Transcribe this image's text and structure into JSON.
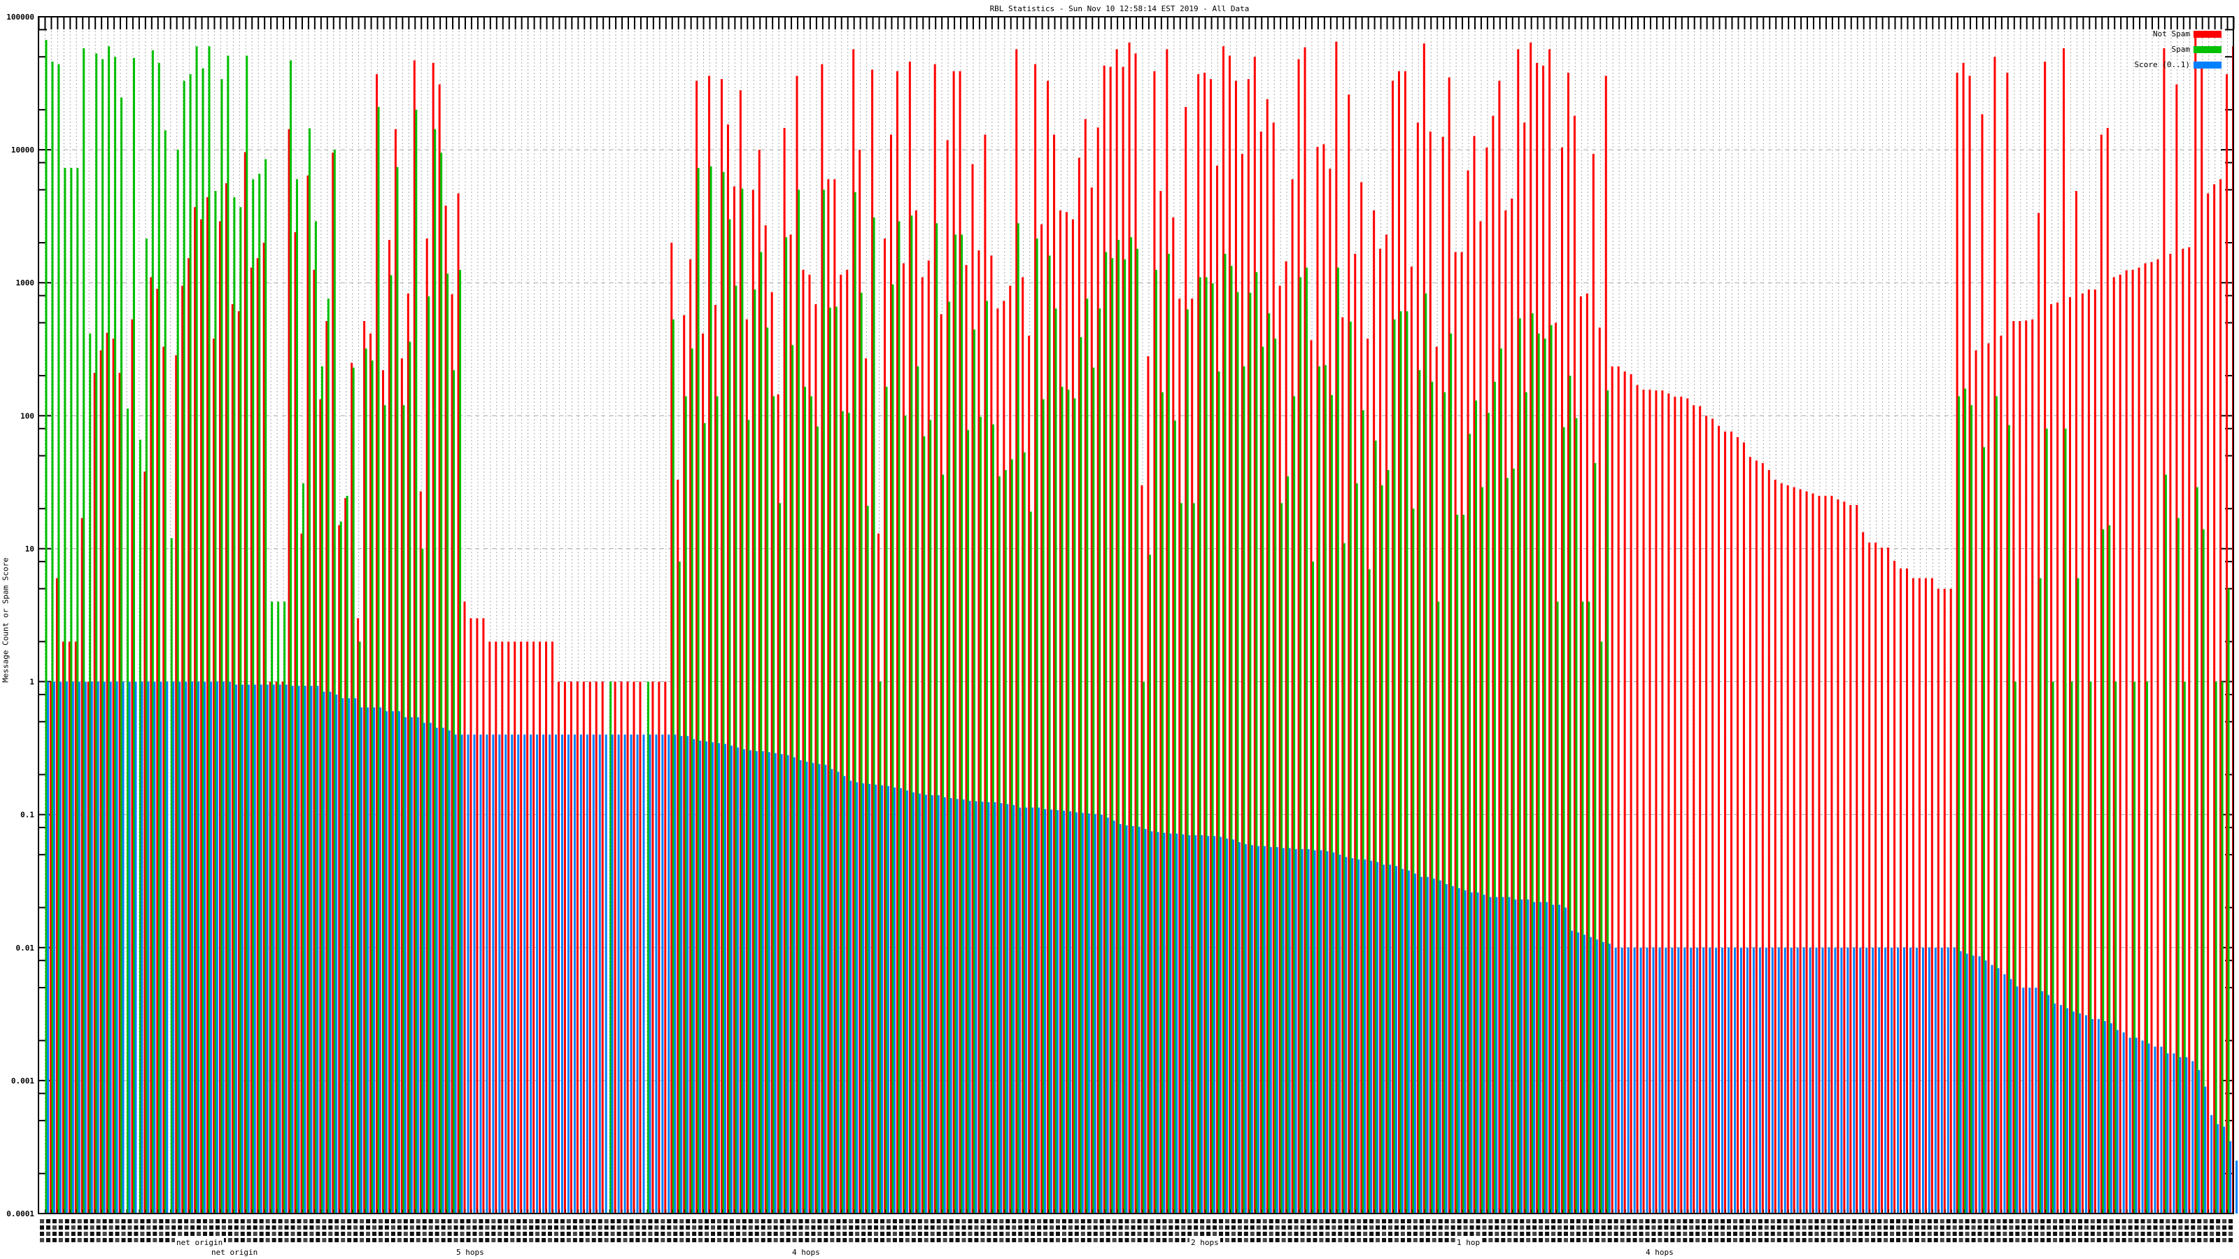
{
  "chart_data": {
    "type": "bar",
    "title": "RBL Statistics - Sun Nov 10 12:58:14 EST 2019 - All Data",
    "ylabel": "Message Count or Spam Score",
    "xlabel": "",
    "yscale": "log",
    "ylim": [
      0.0001,
      100000
    ],
    "yticks": [
      "100000",
      "10000",
      "1000",
      "100",
      "10",
      "1",
      "0.1",
      "0.01",
      "0.001",
      "0.0001"
    ],
    "legend_position": "top-right",
    "grid": true,
    "x_label_fragments": [
      "net origin",
      "net origin",
      "5 hops",
      "4 hops",
      "2 hops",
      "1 hop",
      "4 hops"
    ],
    "series": [
      {
        "name": "Not Spam",
        "color": "#ff0000",
        "values": [
          0,
          1,
          6,
          2,
          2,
          2,
          17,
          1,
          210,
          310,
          420,
          380,
          210,
          0,
          530,
          0,
          38,
          1100,
          900,
          330,
          0,
          285,
          950,
          1530,
          3700,
          3000,
          4400,
          380,
          2900,
          5600,
          690,
          610,
          9600,
          1300,
          1530,
          2000,
          1,
          1,
          1,
          14300,
          2400,
          13,
          6400,
          1250,
          133,
          515,
          9500,
          15,
          24,
          250,
          3,
          515,
          415,
          37000,
          220,
          2100,
          14300,
          270,
          830,
          47000,
          27,
          2150,
          45000,
          31000,
          3800,
          820,
          4700,
          4,
          3,
          3,
          3,
          2,
          2,
          2,
          2,
          2,
          2,
          2,
          2,
          2,
          2,
          2,
          1,
          1,
          1,
          1,
          1,
          1,
          1,
          1,
          0,
          1,
          1,
          1,
          1,
          1,
          0,
          1,
          1,
          1,
          2000,
          33,
          570,
          1500,
          33000,
          415,
          36000,
          680,
          34000,
          15500,
          5300,
          28000,
          530,
          5000,
          10000,
          2700,
          850,
          145,
          14600,
          2300,
          36000,
          1250,
          1150,
          690,
          44000,
          6000,
          6000,
          1150,
          1250,
          57000,
          10000,
          270,
          40000,
          13,
          2150,
          13000,
          39000,
          1400,
          46000,
          3500,
          1100,
          1470,
          44000,
          580,
          11800,
          39000,
          39000,
          1360,
          7800,
          1750,
          13000,
          1600,
          640,
          730,
          950,
          57000,
          1100,
          400,
          44000,
          2750,
          33000,
          13000,
          3500,
          3400,
          3000,
          8700,
          17000,
          5200,
          14700,
          43000,
          42000,
          57000,
          42000,
          64000,
          53000,
          30,
          280,
          39000,
          4900,
          57000,
          3100,
          760,
          21000,
          760,
          37000,
          38000,
          34000,
          7600,
          60000,
          51000,
          33000,
          9300,
          34000,
          50000,
          13700,
          24000,
          16000,
          950,
          1450,
          6000,
          48000,
          59000,
          370,
          10500,
          11000,
          7200,
          65000,
          550,
          26000,
          1650,
          5700,
          380,
          3500,
          1800,
          2300,
          33000,
          39000,
          39000,
          1320,
          16000,
          63000,
          13700,
          330,
          12500,
          35000,
          1700,
          1700,
          7000,
          12700,
          2900,
          10400,
          18000,
          33000,
          3500,
          4300,
          57000,
          16000,
          64000,
          45000,
          43000,
          57000,
          500,
          10400,
          38000,
          18000,
          790,
          830,
          9300,
          460,
          36000,
          235,
          235,
          215,
          205,
          170,
          157,
          157,
          155,
          155,
          147,
          139,
          139,
          135,
          120,
          118,
          100,
          95,
          84,
          76,
          76,
          69,
          63,
          49,
          46,
          44,
          39,
          33,
          31,
          30,
          29,
          28,
          27,
          26,
          25,
          25,
          25,
          23.5,
          22.6,
          21.3,
          21.3,
          13.3,
          11.1,
          11.1,
          10.2,
          10.2,
          8.1,
          7.1,
          7.1,
          6,
          6,
          6,
          6,
          5,
          5,
          5,
          38000,
          45000,
          36000,
          310,
          18500,
          350,
          50000,
          400,
          38000,
          515,
          515,
          520,
          530,
          3350,
          46000,
          690,
          710,
          58000,
          780,
          4900,
          830,
          890,
          890,
          13000,
          14600,
          1100,
          1150,
          1240,
          1250,
          1300,
          1400,
          1430,
          1500,
          58000,
          1650,
          31000,
          1800,
          1850,
          73000,
          44000,
          4700,
          5500,
          6000,
          37000,
          60000
        ]
      },
      {
        "name": "Spam",
        "color": "#00c000",
        "values": [
          67000,
          46000,
          44000,
          7300,
          7300,
          7300,
          58000,
          415,
          53000,
          48000,
          60000,
          50000,
          24700,
          113,
          49000,
          66,
          2150,
          56000,
          45000,
          14000,
          12,
          10000,
          33000,
          37000,
          60000,
          41000,
          60000,
          4900,
          34000,
          51000,
          4400,
          3700,
          51000,
          6000,
          6600,
          8500,
          4,
          4,
          4,
          47000,
          6000,
          31,
          14500,
          2900,
          235,
          760,
          10000,
          16,
          25,
          230,
          2,
          320,
          260,
          21000,
          120,
          1140,
          7400,
          120,
          360,
          20000,
          10,
          790,
          14300,
          9500,
          1170,
          220,
          1250,
          0,
          0,
          0,
          0,
          0,
          0,
          0,
          0,
          0,
          0,
          0,
          0,
          0,
          0,
          0,
          0,
          0,
          0,
          0,
          0,
          0,
          0,
          0,
          1,
          0,
          0,
          0,
          0,
          0,
          1,
          0,
          0,
          0,
          530,
          8,
          140,
          320,
          7300,
          88,
          7500,
          140,
          6800,
          3000,
          950,
          5100,
          93,
          890,
          1700,
          460,
          140,
          22,
          2200,
          340,
          5000,
          165,
          140,
          83,
          5000,
          650,
          660,
          108,
          105,
          4800,
          840,
          21,
          3100,
          1,
          165,
          970,
          2900,
          100,
          3200,
          235,
          70,
          93,
          2800,
          36,
          720,
          2300,
          2300,
          78,
          445,
          98,
          730,
          86,
          35,
          39,
          47,
          2800,
          53,
          19,
          2150,
          133,
          1600,
          640,
          165,
          157,
          135,
          390,
          760,
          230,
          640,
          1700,
          1530,
          2100,
          1500,
          2200,
          1800,
          1,
          9,
          1250,
          150,
          1650,
          92,
          22,
          630,
          22,
          1100,
          1100,
          990,
          215,
          1650,
          1340,
          850,
          235,
          840,
          1200,
          330,
          590,
          380,
          22,
          35,
          140,
          1100,
          1300,
          8,
          235,
          240,
          143,
          1300,
          11,
          510,
          31,
          110,
          7,
          65,
          30,
          39,
          530,
          610,
          610,
          20,
          220,
          830,
          180,
          4,
          150,
          415,
          18,
          18,
          73,
          130,
          29,
          105,
          180,
          320,
          34,
          40,
          540,
          150,
          590,
          415,
          380,
          480,
          4,
          82,
          200,
          96,
          4,
          4,
          44,
          2,
          155,
          0,
          0,
          0,
          0,
          0,
          0,
          0,
          0,
          0,
          0,
          0,
          0,
          0,
          0,
          0,
          0,
          0,
          0,
          0,
          0,
          0,
          0,
          0,
          0,
          0,
          0,
          0,
          0,
          0,
          0,
          0,
          0,
          0,
          0,
          0,
          0,
          0,
          0,
          0,
          0,
          0,
          0,
          0,
          0,
          0,
          0,
          0,
          0,
          0,
          0,
          0,
          0,
          0,
          0,
          0,
          140,
          160,
          120,
          0,
          58,
          0,
          140,
          0,
          85,
          1,
          0,
          0,
          0,
          6,
          80,
          1,
          0,
          80,
          1,
          6,
          0,
          1,
          0,
          14,
          15,
          1,
          0,
          0,
          1,
          0,
          1,
          0,
          0,
          36,
          0,
          17,
          1,
          0,
          29,
          14,
          0,
          1,
          1,
          5,
          0
        ]
      },
      {
        "name": "Score (0..1)",
        "color": "#0080ff",
        "values": [
          1,
          1,
          1,
          1,
          1,
          1,
          1,
          1,
          1,
          1,
          1,
          1,
          1,
          1,
          1,
          1,
          1,
          1,
          1,
          1,
          1,
          1,
          1,
          1,
          1,
          1,
          1,
          1,
          1,
          1,
          0.95,
          0.95,
          0.95,
          0.95,
          0.95,
          0.95,
          0.95,
          0.95,
          0.95,
          0.93,
          0.93,
          0.93,
          0.93,
          0.93,
          0.84,
          0.84,
          0.8,
          0.75,
          0.75,
          0.75,
          0.64,
          0.64,
          0.64,
          0.64,
          0.6,
          0.6,
          0.6,
          0.54,
          0.54,
          0.54,
          0.49,
          0.49,
          0.45,
          0.45,
          0.43,
          0.4,
          0.4,
          0.4,
          0.4,
          0.4,
          0.4,
          0.4,
          0.4,
          0.4,
          0.4,
          0.4,
          0.4,
          0.4,
          0.4,
          0.4,
          0.4,
          0.4,
          0.4,
          0.4,
          0.4,
          0.4,
          0.4,
          0.4,
          0.4,
          0.4,
          0.4,
          0.4,
          0.4,
          0.4,
          0.4,
          0.4,
          0.4,
          0.4,
          0.4,
          0.4,
          0.4,
          0.39,
          0.39,
          0.37,
          0.36,
          0.355,
          0.35,
          0.345,
          0.34,
          0.33,
          0.32,
          0.31,
          0.305,
          0.3,
          0.3,
          0.295,
          0.29,
          0.285,
          0.28,
          0.27,
          0.257,
          0.25,
          0.245,
          0.24,
          0.237,
          0.22,
          0.21,
          0.195,
          0.18,
          0.175,
          0.172,
          0.17,
          0.168,
          0.166,
          0.164,
          0.16,
          0.158,
          0.152,
          0.147,
          0.144,
          0.141,
          0.14,
          0.14,
          0.135,
          0.133,
          0.131,
          0.13,
          0.127,
          0.126,
          0.125,
          0.124,
          0.124,
          0.122,
          0.12,
          0.118,
          0.113,
          0.113,
          0.113,
          0.113,
          0.11,
          0.109,
          0.108,
          0.107,
          0.106,
          0.104,
          0.103,
          0.102,
          0.101,
          0.1,
          0.095,
          0.09,
          0.085,
          0.083,
          0.082,
          0.081,
          0.078,
          0.075,
          0.074,
          0.073,
          0.072,
          0.072,
          0.071,
          0.07,
          0.07,
          0.07,
          0.069,
          0.069,
          0.068,
          0.066,
          0.065,
          0.062,
          0.06,
          0.059,
          0.058,
          0.058,
          0.057,
          0.057,
          0.056,
          0.056,
          0.055,
          0.055,
          0.055,
          0.054,
          0.054,
          0.053,
          0.052,
          0.05,
          0.048,
          0.047,
          0.046,
          0.046,
          0.045,
          0.044,
          0.042,
          0.042,
          0.041,
          0.039,
          0.038,
          0.036,
          0.034,
          0.034,
          0.033,
          0.032,
          0.03,
          0.029,
          0.028,
          0.027,
          0.026,
          0.026,
          0.025,
          0.024,
          0.024,
          0.024,
          0.024,
          0.023,
          0.023,
          0.023,
          0.022,
          0.022,
          0.022,
          0.021,
          0.021,
          0.02,
          0.0134,
          0.013,
          0.0125,
          0.012,
          0.0115,
          0.011,
          0.0107,
          0.01,
          0.01,
          0.01,
          0.01,
          0.01,
          0.01,
          0.01,
          0.01,
          0.01,
          0.01,
          0.01,
          0.01,
          0.01,
          0.01,
          0.01,
          0.01,
          0.01,
          0.01,
          0.01,
          0.01,
          0.01,
          0.01,
          0.01,
          0.01,
          0.01,
          0.01,
          0.01,
          0.01,
          0.01,
          0.01,
          0.01,
          0.01,
          0.01,
          0.01,
          0.01,
          0.01,
          0.01,
          0.01,
          0.01,
          0.01,
          0.01,
          0.01,
          0.01,
          0.01,
          0.01,
          0.01,
          0.01,
          0.01,
          0.01,
          0.01,
          0.01,
          0.01,
          0.01,
          0.01,
          0.01,
          0.0094,
          0.009,
          0.0087,
          0.0086,
          0.008,
          0.0074,
          0.007,
          0.0063,
          0.0058,
          0.0051,
          0.005,
          0.005,
          0.005,
          0.0047,
          0.0044,
          0.0038,
          0.0037,
          0.0035,
          0.0033,
          0.0032,
          0.0031,
          0.0029,
          0.0029,
          0.0028,
          0.0027,
          0.0024,
          0.0023,
          0.0021,
          0.0021,
          0.002,
          0.0019,
          0.0018,
          0.0018,
          0.0016,
          0.0016,
          0.0015,
          0.0015,
          0.0014,
          0.0012,
          0.0009,
          0.00055,
          0.00047,
          0.00045,
          0.00035,
          0.00025
        ]
      }
    ]
  }
}
